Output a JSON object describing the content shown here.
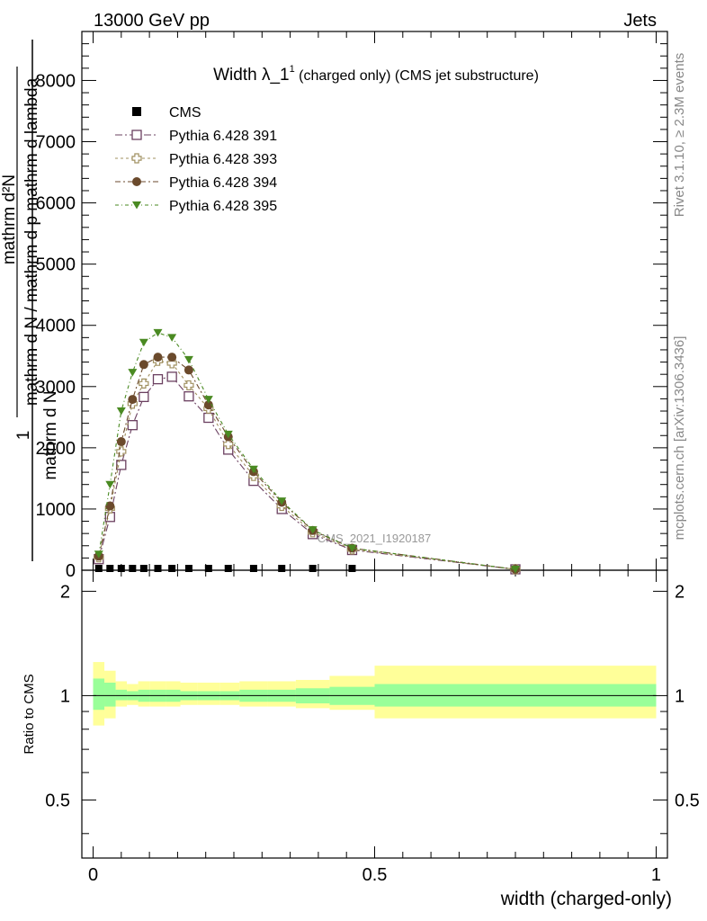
{
  "header": {
    "left": "13000 GeV pp",
    "right": "Jets"
  },
  "side": {
    "rivet": "Rivet 3.1.10, ≥ 2.3M events",
    "mcplots": "mcplots.cern.ch [arXiv:1306.3436]"
  },
  "chart_data": {
    "type": "line",
    "title": "Width λ_1",
    "title_sup": "1",
    "title_suffix": " (charged only) (CMS jet substructure)",
    "xlabel": "width (charged-only)",
    "ylabel_top": {
      "numerator": "1",
      "denominator": "mathrm d N",
      "fraction_bar": "/",
      "inner_top": "mathrm d²N",
      "inner_bottom": "mathrm d p_mathrm d lambda",
      "display": "mathrm d N / mathrm d p mathrm d lambda",
      "full": "mathrm d²N / mathrm d p mathrm d lambda"
    },
    "ylabel_ratio": "Ratio to CMS",
    "watermark": "CMS_2021_I1920187",
    "xlim": [
      -0.02,
      1.02
    ],
    "ylim_top": [
      0,
      8800
    ],
    "ylim_ratio": [
      0.34,
      2.3
    ],
    "ratio_log": true,
    "x_ticks": [
      "0",
      "0.5",
      "1"
    ],
    "y_ticks_top": [
      "0",
      "1000",
      "2000",
      "3000",
      "4000",
      "5000",
      "6000",
      "7000",
      "8000"
    ],
    "y_ticks_ratio": [
      "0.5",
      "1",
      "2"
    ],
    "legend_position": "top-left",
    "series": [
      {
        "name": "CMS",
        "color": "#000000",
        "marker": "square-filled",
        "x": [
          0.01,
          0.03,
          0.05,
          0.07,
          0.09,
          0.115,
          0.14,
          0.17,
          0.205,
          0.24,
          0.285,
          0.335,
          0.39,
          0.46
        ],
        "y": [
          2,
          2,
          2,
          2,
          2,
          2,
          2,
          2,
          2,
          2,
          2,
          2,
          2,
          2
        ]
      },
      {
        "name": "Pythia 6.428 391",
        "color": "#6b4060",
        "marker": "square-open",
        "x": [
          0.01,
          0.03,
          0.05,
          0.07,
          0.09,
          0.115,
          0.14,
          0.17,
          0.205,
          0.24,
          0.285,
          0.335,
          0.39,
          0.46,
          0.75
        ],
        "y": [
          180,
          870,
          1720,
          2370,
          2830,
          3120,
          3160,
          2840,
          2490,
          1970,
          1460,
          1000,
          590,
          330,
          15
        ]
      },
      {
        "name": "Pythia 6.428 393",
        "color": "#a09060",
        "marker": "cross-open",
        "x": [
          0.01,
          0.03,
          0.05,
          0.07,
          0.09,
          0.115,
          0.14,
          0.17,
          0.205,
          0.24,
          0.285,
          0.335,
          0.39,
          0.46,
          0.75
        ],
        "y": [
          210,
          1010,
          1940,
          2720,
          3050,
          3420,
          3380,
          3020,
          2640,
          2060,
          1540,
          1050,
          620,
          340,
          15
        ]
      },
      {
        "name": "Pythia 6.428 394",
        "color": "#6b4a2c",
        "marker": "circle-filled",
        "x": [
          0.01,
          0.03,
          0.05,
          0.07,
          0.09,
          0.115,
          0.14,
          0.17,
          0.205,
          0.24,
          0.285,
          0.335,
          0.39,
          0.46,
          0.75
        ],
        "y": [
          230,
          1050,
          2100,
          2790,
          3360,
          3480,
          3480,
          3270,
          2700,
          2180,
          1610,
          1110,
          650,
          360,
          15
        ]
      },
      {
        "name": "Pythia 6.428 395",
        "color": "#4a8a22",
        "marker": "triangle-down-filled",
        "x": [
          0.01,
          0.03,
          0.05,
          0.07,
          0.09,
          0.115,
          0.14,
          0.17,
          0.205,
          0.24,
          0.285,
          0.335,
          0.39,
          0.46,
          0.75
        ],
        "y": [
          260,
          1400,
          2600,
          3230,
          3720,
          3880,
          3800,
          3440,
          2790,
          2220,
          1650,
          1130,
          660,
          360,
          15
        ]
      }
    ],
    "ratio_bands": {
      "yellow_color": "#ffff99",
      "green_color": "#99ff99",
      "edges": [
        0.0,
        0.02,
        0.04,
        0.06,
        0.08,
        0.1,
        0.13,
        0.155,
        0.185,
        0.225,
        0.26,
        0.31,
        0.36,
        0.42,
        0.5,
        1.0
      ],
      "yellow_lo": [
        0.82,
        0.86,
        0.93,
        0.94,
        0.93,
        0.93,
        0.93,
        0.94,
        0.94,
        0.94,
        0.93,
        0.93,
        0.92,
        0.91,
        0.86
      ],
      "yellow_hi": [
        1.25,
        1.18,
        1.1,
        1.08,
        1.1,
        1.1,
        1.1,
        1.09,
        1.09,
        1.09,
        1.1,
        1.1,
        1.11,
        1.14,
        1.22
      ],
      "green_lo": [
        0.91,
        0.93,
        0.97,
        0.97,
        0.96,
        0.96,
        0.96,
        0.97,
        0.97,
        0.97,
        0.96,
        0.96,
        0.95,
        0.94,
        0.93
      ],
      "green_hi": [
        1.12,
        1.09,
        1.04,
        1.03,
        1.04,
        1.04,
        1.04,
        1.03,
        1.03,
        1.03,
        1.04,
        1.04,
        1.05,
        1.06,
        1.08
      ]
    }
  }
}
